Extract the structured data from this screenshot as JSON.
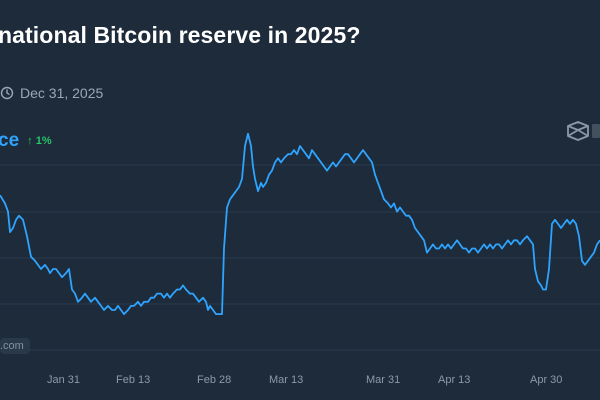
{
  "question": {
    "title": "national Bitcoin reserve in 2025?",
    "close_date": "Dec 31, 2025"
  },
  "price": {
    "label": "ce",
    "change": "↑ 1%"
  },
  "watermark": {
    "text": ".com"
  },
  "icons": {
    "clock": "clock-icon",
    "scale": "scale-icon"
  },
  "colors": {
    "background": "#1d2b3a",
    "line": "#2fa4ff",
    "change_up": "#27c46a"
  },
  "chart_data": {
    "type": "line",
    "x_ticks": [
      "Jan 31",
      "Feb 13",
      "Feb 28",
      "Mar 13",
      "Mar 31",
      "Apr 13",
      "Apr 30"
    ],
    "y_unit": "percent",
    "ylim": [
      0,
      100
    ],
    "grid": true,
    "series": [
      {
        "values": [
          [
            0,
            48
          ],
          [
            5,
            46
          ],
          [
            8,
            44
          ],
          [
            10,
            39
          ],
          [
            13,
            40
          ],
          [
            16,
            42
          ],
          [
            19,
            43
          ],
          [
            23,
            42
          ],
          [
            27,
            38
          ],
          [
            31,
            33
          ],
          [
            35,
            32
          ],
          [
            38,
            31
          ],
          [
            41,
            30
          ],
          [
            45,
            31
          ],
          [
            48,
            30
          ],
          [
            50,
            29
          ],
          [
            53,
            30
          ],
          [
            56,
            30
          ],
          [
            59,
            29
          ],
          [
            62,
            28
          ],
          [
            66,
            29
          ],
          [
            69,
            30
          ],
          [
            72,
            25
          ],
          [
            75,
            24
          ],
          [
            78,
            22
          ],
          [
            82,
            23
          ],
          [
            85,
            24
          ],
          [
            88,
            23
          ],
          [
            91,
            22
          ],
          [
            95,
            23
          ],
          [
            98,
            22
          ],
          [
            101,
            21
          ],
          [
            104,
            20
          ],
          [
            108,
            21
          ],
          [
            112,
            20
          ],
          [
            115,
            20
          ],
          [
            118,
            21
          ],
          [
            121,
            20
          ],
          [
            124,
            19
          ],
          [
            128,
            20
          ],
          [
            131,
            21
          ],
          [
            134,
            21
          ],
          [
            138,
            22
          ],
          [
            141,
            21
          ],
          [
            144,
            22
          ],
          [
            148,
            22
          ],
          [
            151,
            23
          ],
          [
            154,
            23
          ],
          [
            157,
            24
          ],
          [
            161,
            24
          ],
          [
            164,
            23
          ],
          [
            167,
            24
          ],
          [
            170,
            23
          ],
          [
            173,
            24
          ],
          [
            177,
            25
          ],
          [
            180,
            25
          ],
          [
            183,
            26
          ],
          [
            186,
            25
          ],
          [
            190,
            24
          ],
          [
            193,
            24
          ],
          [
            196,
            23
          ],
          [
            199,
            22
          ],
          [
            203,
            23
          ],
          [
            206,
            22
          ],
          [
            208,
            20
          ],
          [
            210,
            21
          ],
          [
            213,
            20
          ],
          [
            216,
            19
          ],
          [
            219,
            19
          ],
          [
            222,
            19
          ],
          [
            224,
            35
          ],
          [
            227,
            45
          ],
          [
            230,
            47
          ],
          [
            233,
            48
          ],
          [
            236,
            49
          ],
          [
            239,
            50
          ],
          [
            242,
            52
          ],
          [
            245,
            60
          ],
          [
            248,
            63
          ],
          [
            251,
            60
          ],
          [
            253,
            55
          ],
          [
            255,
            52
          ],
          [
            258,
            49
          ],
          [
            261,
            51
          ],
          [
            263,
            50
          ],
          [
            266,
            51
          ],
          [
            269,
            53
          ],
          [
            272,
            54
          ],
          [
            275,
            56
          ],
          [
            278,
            57
          ],
          [
            281,
            56
          ],
          [
            284,
            57
          ],
          [
            288,
            58
          ],
          [
            291,
            58
          ],
          [
            294,
            59
          ],
          [
            297,
            58
          ],
          [
            300,
            60
          ],
          [
            303,
            59
          ],
          [
            306,
            58
          ],
          [
            309,
            57
          ],
          [
            312,
            59
          ],
          [
            315,
            58
          ],
          [
            318,
            57
          ],
          [
            321,
            56
          ],
          [
            324,
            55
          ],
          [
            327,
            54
          ],
          [
            330,
            55
          ],
          [
            333,
            56
          ],
          [
            336,
            55
          ],
          [
            339,
            56
          ],
          [
            342,
            57
          ],
          [
            345,
            58
          ],
          [
            348,
            58
          ],
          [
            351,
            57
          ],
          [
            354,
            56
          ],
          [
            357,
            57
          ],
          [
            360,
            58
          ],
          [
            363,
            59
          ],
          [
            366,
            58
          ],
          [
            369,
            57
          ],
          [
            372,
            56
          ],
          [
            375,
            53
          ],
          [
            378,
            51
          ],
          [
            381,
            49
          ],
          [
            384,
            47
          ],
          [
            388,
            46
          ],
          [
            391,
            45
          ],
          [
            394,
            46
          ],
          [
            397,
            44
          ],
          [
            400,
            45
          ],
          [
            403,
            44
          ],
          [
            406,
            43
          ],
          [
            409,
            43
          ],
          [
            412,
            42
          ],
          [
            415,
            40
          ],
          [
            418,
            39
          ],
          [
            421,
            38
          ],
          [
            424,
            37
          ],
          [
            427,
            34
          ],
          [
            430,
            35
          ],
          [
            433,
            36
          ],
          [
            436,
            35
          ],
          [
            439,
            35
          ],
          [
            442,
            36
          ],
          [
            445,
            35
          ],
          [
            448,
            36
          ],
          [
            451,
            35
          ],
          [
            454,
            36
          ],
          [
            457,
            37
          ],
          [
            460,
            36
          ],
          [
            463,
            35
          ],
          [
            466,
            35
          ],
          [
            469,
            34
          ],
          [
            472,
            35
          ],
          [
            475,
            35
          ],
          [
            478,
            34
          ],
          [
            481,
            35
          ],
          [
            484,
            36
          ],
          [
            487,
            35
          ],
          [
            490,
            36
          ],
          [
            493,
            35
          ],
          [
            496,
            36
          ],
          [
            499,
            36
          ],
          [
            502,
            35
          ],
          [
            505,
            36
          ],
          [
            508,
            37
          ],
          [
            511,
            36
          ],
          [
            514,
            37
          ],
          [
            517,
            37
          ],
          [
            520,
            36
          ],
          [
            523,
            37
          ],
          [
            527,
            38
          ],
          [
            530,
            37
          ],
          [
            533,
            36
          ],
          [
            535,
            30
          ],
          [
            538,
            27
          ],
          [
            541,
            26
          ],
          [
            543,
            25
          ],
          [
            546,
            25
          ],
          [
            549,
            30
          ],
          [
            552,
            41
          ],
          [
            555,
            42
          ],
          [
            558,
            41
          ],
          [
            561,
            40
          ],
          [
            564,
            41
          ],
          [
            567,
            42
          ],
          [
            570,
            41
          ],
          [
            573,
            42
          ],
          [
            576,
            41
          ],
          [
            579,
            38
          ],
          [
            582,
            32
          ],
          [
            585,
            31
          ],
          [
            588,
            32
          ],
          [
            591,
            33
          ],
          [
            594,
            34
          ],
          [
            597,
            36
          ],
          [
            600,
            37
          ]
        ]
      }
    ]
  }
}
